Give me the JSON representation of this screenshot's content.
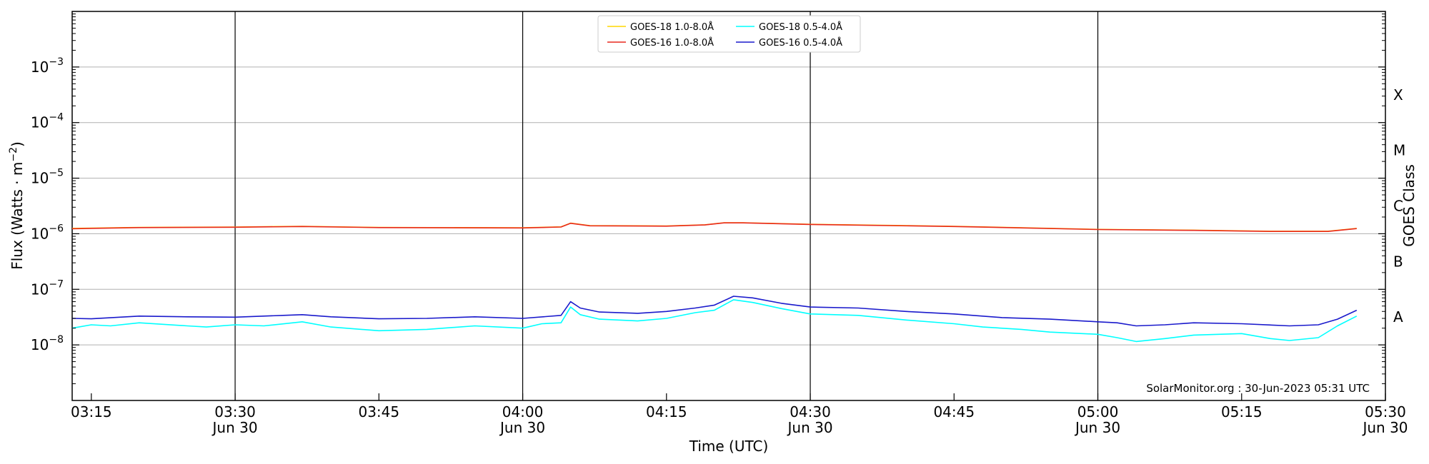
{
  "chart_data": {
    "type": "line",
    "ylabel_main": "Flux (Watts · m",
    "ylabel_sup": "−2",
    "ylabel_close": ")",
    "xlabel": "Time (UTC)",
    "right_label": "GOES Class",
    "watermark": "SolarMonitor.org : 30-Jun-2023 05:31 UTC",
    "y_scale": "log",
    "ylim": [
      1e-09,
      0.01
    ],
    "xlim": [
      "03:13",
      "05:30"
    ],
    "grid": "horizontal",
    "legend_position": "top-center",
    "y_ticks": [
      {
        "exp": -8,
        "base": "10",
        "sup": "−8"
      },
      {
        "exp": -7,
        "base": "10",
        "sup": "−7"
      },
      {
        "exp": -6,
        "base": "10",
        "sup": "−6"
      },
      {
        "exp": -5,
        "base": "10",
        "sup": "−5"
      },
      {
        "exp": -4,
        "base": "10",
        "sup": "−4"
      },
      {
        "exp": -3,
        "base": "10",
        "sup": "−3"
      }
    ],
    "x_ticks": [
      {
        "time": "03:15",
        "label": "03:15",
        "sub": ""
      },
      {
        "time": "03:30",
        "label": "03:30",
        "sub": "Jun 30"
      },
      {
        "time": "03:45",
        "label": "03:45",
        "sub": ""
      },
      {
        "time": "04:00",
        "label": "04:00",
        "sub": "Jun 30"
      },
      {
        "time": "04:15",
        "label": "04:15",
        "sub": ""
      },
      {
        "time": "04:30",
        "label": "04:30",
        "sub": "Jun 30"
      },
      {
        "time": "04:45",
        "label": "04:45",
        "sub": ""
      },
      {
        "time": "05:00",
        "label": "05:00",
        "sub": "Jun 30"
      },
      {
        "time": "05:15",
        "label": "05:15",
        "sub": ""
      },
      {
        "time": "05:30",
        "label": "05:30",
        "sub": "Jun 30"
      }
    ],
    "vertical_lines": [
      "03:30",
      "04:00",
      "04:30",
      "05:00"
    ],
    "goes_classes": [
      {
        "label": "A",
        "exp": -7.5
      },
      {
        "label": "B",
        "exp": -6.5
      },
      {
        "label": "C",
        "exp": -5.5
      },
      {
        "label": "M",
        "exp": -4.5
      },
      {
        "label": "X",
        "exp": -3.5
      }
    ],
    "series": [
      {
        "name": "GOES-18 1.0-8.0Å",
        "color": "#FFD700",
        "points": [
          [
            "03:13",
            1.25e-06
          ],
          [
            "03:20",
            1.3e-06
          ],
          [
            "03:30",
            1.32e-06
          ],
          [
            "03:37",
            1.36e-06
          ],
          [
            "03:45",
            1.3e-06
          ],
          [
            "04:00",
            1.28e-06
          ],
          [
            "04:04",
            1.33e-06
          ],
          [
            "04:05",
            1.55e-06
          ],
          [
            "04:07",
            1.4e-06
          ],
          [
            "04:15",
            1.38e-06
          ],
          [
            "04:19",
            1.45e-06
          ],
          [
            "04:21",
            1.58e-06
          ],
          [
            "04:23",
            1.58e-06
          ],
          [
            "04:30",
            1.48e-06
          ],
          [
            "04:45",
            1.36e-06
          ],
          [
            "05:00",
            1.2e-06
          ],
          [
            "05:10",
            1.16e-06
          ],
          [
            "05:18",
            1.11e-06
          ],
          [
            "05:24",
            1.11e-06
          ],
          [
            "05:27",
            1.25e-06
          ]
        ]
      },
      {
        "name": "GOES-16 1.0-8.0Å",
        "color": "#E8281E",
        "points": [
          [
            "03:13",
            1.23e-06
          ],
          [
            "03:20",
            1.29e-06
          ],
          [
            "03:30",
            1.31e-06
          ],
          [
            "03:37",
            1.35e-06
          ],
          [
            "03:45",
            1.29e-06
          ],
          [
            "04:00",
            1.27e-06
          ],
          [
            "04:04",
            1.32e-06
          ],
          [
            "04:05",
            1.54e-06
          ],
          [
            "04:07",
            1.39e-06
          ],
          [
            "04:15",
            1.37e-06
          ],
          [
            "04:19",
            1.44e-06
          ],
          [
            "04:21",
            1.57e-06
          ],
          [
            "04:23",
            1.57e-06
          ],
          [
            "04:30",
            1.47e-06
          ],
          [
            "04:45",
            1.35e-06
          ],
          [
            "05:00",
            1.19e-06
          ],
          [
            "05:10",
            1.15e-06
          ],
          [
            "05:18",
            1.1e-06
          ],
          [
            "05:24",
            1.1e-06
          ],
          [
            "05:27",
            1.24e-06
          ]
        ]
      },
      {
        "name": "GOES-18 0.5-4.0Å",
        "color": "#00FFFF",
        "points": [
          [
            "03:13",
            2e-08
          ],
          [
            "03:15",
            2.3e-08
          ],
          [
            "03:17",
            2.2e-08
          ],
          [
            "03:20",
            2.5e-08
          ],
          [
            "03:25",
            2.2e-08
          ],
          [
            "03:27",
            2.1e-08
          ],
          [
            "03:30",
            2.3e-08
          ],
          [
            "03:33",
            2.2e-08
          ],
          [
            "03:37",
            2.6e-08
          ],
          [
            "03:40",
            2.1e-08
          ],
          [
            "03:45",
            1.8e-08
          ],
          [
            "03:50",
            1.9e-08
          ],
          [
            "03:55",
            2.2e-08
          ],
          [
            "04:00",
            2e-08
          ],
          [
            "04:02",
            2.4e-08
          ],
          [
            "04:04",
            2.5e-08
          ],
          [
            "04:05",
            4.8e-08
          ],
          [
            "04:06",
            3.5e-08
          ],
          [
            "04:08",
            2.9e-08
          ],
          [
            "04:12",
            2.7e-08
          ],
          [
            "04:15",
            3e-08
          ],
          [
            "04:18",
            3.8e-08
          ],
          [
            "04:20",
            4.2e-08
          ],
          [
            "04:22",
            6.5e-08
          ],
          [
            "04:24",
            5.8e-08
          ],
          [
            "04:27",
            4.5e-08
          ],
          [
            "04:30",
            3.6e-08
          ],
          [
            "04:35",
            3.4e-08
          ],
          [
            "04:40",
            2.8e-08
          ],
          [
            "04:45",
            2.4e-08
          ],
          [
            "04:48",
            2.1e-08
          ],
          [
            "04:52",
            1.9e-08
          ],
          [
            "04:55",
            1.7e-08
          ],
          [
            "05:00",
            1.55e-08
          ],
          [
            "05:02",
            1.35e-08
          ],
          [
            "05:04",
            1.15e-08
          ],
          [
            "05:07",
            1.3e-08
          ],
          [
            "05:10",
            1.5e-08
          ],
          [
            "05:15",
            1.6e-08
          ],
          [
            "05:18",
            1.3e-08
          ],
          [
            "05:20",
            1.2e-08
          ],
          [
            "05:23",
            1.35e-08
          ],
          [
            "05:25",
            2.2e-08
          ],
          [
            "05:27",
            3.3e-08
          ]
        ]
      },
      {
        "name": "GOES-16 0.5-4.0Å",
        "color": "#1A1ACC",
        "points": [
          [
            "03:13",
            3e-08
          ],
          [
            "03:15",
            2.95e-08
          ],
          [
            "03:20",
            3.3e-08
          ],
          [
            "03:25",
            3.2e-08
          ],
          [
            "03:30",
            3.15e-08
          ],
          [
            "03:35",
            3.4e-08
          ],
          [
            "03:37",
            3.5e-08
          ],
          [
            "03:40",
            3.2e-08
          ],
          [
            "03:45",
            2.95e-08
          ],
          [
            "03:50",
            3e-08
          ],
          [
            "03:55",
            3.2e-08
          ],
          [
            "04:00",
            3e-08
          ],
          [
            "04:04",
            3.4e-08
          ],
          [
            "04:05",
            6e-08
          ],
          [
            "04:06",
            4.6e-08
          ],
          [
            "04:08",
            3.9e-08
          ],
          [
            "04:12",
            3.7e-08
          ],
          [
            "04:15",
            4e-08
          ],
          [
            "04:18",
            4.6e-08
          ],
          [
            "04:20",
            5.2e-08
          ],
          [
            "04:22",
            7.5e-08
          ],
          [
            "04:24",
            7e-08
          ],
          [
            "04:27",
            5.6e-08
          ],
          [
            "04:30",
            4.8e-08
          ],
          [
            "04:35",
            4.6e-08
          ],
          [
            "04:40",
            4e-08
          ],
          [
            "04:45",
            3.6e-08
          ],
          [
            "04:50",
            3.1e-08
          ],
          [
            "04:55",
            2.9e-08
          ],
          [
            "05:00",
            2.6e-08
          ],
          [
            "05:02",
            2.5e-08
          ],
          [
            "05:04",
            2.2e-08
          ],
          [
            "05:07",
            2.3e-08
          ],
          [
            "05:10",
            2.5e-08
          ],
          [
            "05:15",
            2.4e-08
          ],
          [
            "05:20",
            2.2e-08
          ],
          [
            "05:23",
            2.3e-08
          ],
          [
            "05:25",
            2.9e-08
          ],
          [
            "05:27",
            4.2e-08
          ]
        ]
      }
    ]
  }
}
